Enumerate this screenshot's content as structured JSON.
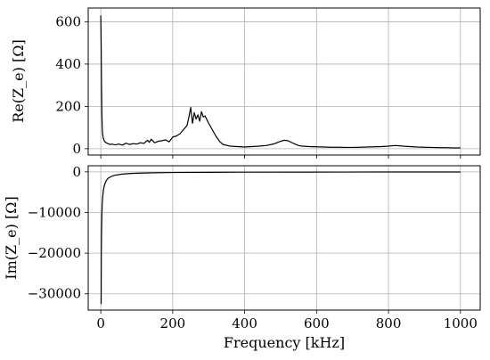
{
  "chart_data": [
    {
      "type": "line",
      "id": "re",
      "ylabel": "Re(Z_e) [Ω]",
      "xlabel": "",
      "xlim": [
        -35,
        1055
      ],
      "ylim": [
        -30,
        665
      ],
      "xticks": [
        0,
        200,
        400,
        600,
        800,
        1000
      ],
      "yticks": [
        0,
        200,
        400,
        600
      ],
      "show_x_tick_labels": false,
      "grid": true,
      "series": [
        {
          "color": "#000000",
          "x": [
            0,
            1,
            2,
            3,
            4,
            5,
            7,
            10,
            15,
            20,
            25,
            30,
            40,
            50,
            60,
            70,
            80,
            90,
            100,
            110,
            120,
            130,
            135,
            140,
            150,
            160,
            170,
            180,
            190,
            200,
            210,
            220,
            230,
            240,
            245,
            250,
            255,
            260,
            265,
            270,
            275,
            280,
            285,
            290,
            300,
            310,
            320,
            330,
            340,
            360,
            380,
            400,
            420,
            440,
            460,
            480,
            500,
            510,
            520,
            530,
            540,
            550,
            560,
            580,
            600,
            620,
            640,
            660,
            680,
            700,
            720,
            740,
            760,
            780,
            800,
            820,
            840,
            860,
            880,
            900,
            920,
            940,
            960,
            980,
            1000
          ],
          "y": [
            630,
            500,
            300,
            170,
            100,
            70,
            50,
            35,
            28,
            24,
            20,
            22,
            18,
            22,
            17,
            26,
            20,
            24,
            22,
            28,
            25,
            40,
            30,
            45,
            28,
            35,
            38,
            42,
            32,
            55,
            60,
            70,
            90,
            110,
            150,
            195,
            120,
            170,
            140,
            160,
            130,
            175,
            150,
            155,
            120,
            90,
            60,
            35,
            20,
            12,
            10,
            8,
            10,
            12,
            15,
            22,
            35,
            40,
            38,
            30,
            22,
            15,
            12,
            10,
            9,
            8,
            7,
            7,
            6,
            6,
            7,
            8,
            9,
            10,
            12,
            15,
            12,
            10,
            8,
            7,
            6,
            5,
            5,
            4,
            4
          ]
        }
      ]
    },
    {
      "type": "line",
      "id": "im",
      "ylabel": "Im(Z_e) [Ω]",
      "xlabel": "Frequency [kHz]",
      "xlim": [
        -35,
        1055
      ],
      "ylim": [
        -34000,
        1500
      ],
      "xticks": [
        0,
        200,
        400,
        600,
        800,
        1000
      ],
      "yticks": [
        0,
        -10000,
        -20000,
        -30000
      ],
      "show_x_tick_labels": true,
      "grid": true,
      "series": [
        {
          "color": "#000000",
          "x": [
            1,
            1.5,
            2,
            3,
            4,
            5,
            7,
            10,
            15,
            20,
            30,
            40,
            60,
            80,
            100,
            150,
            200,
            300,
            400,
            600,
            800,
            1000
          ],
          "y": [
            -32500,
            -20000,
            -15500,
            -10500,
            -8000,
            -6500,
            -4700,
            -3300,
            -2200,
            -1600,
            -1100,
            -820,
            -550,
            -410,
            -330,
            -220,
            -160,
            -110,
            -80,
            -55,
            -40,
            -30
          ]
        }
      ]
    }
  ]
}
